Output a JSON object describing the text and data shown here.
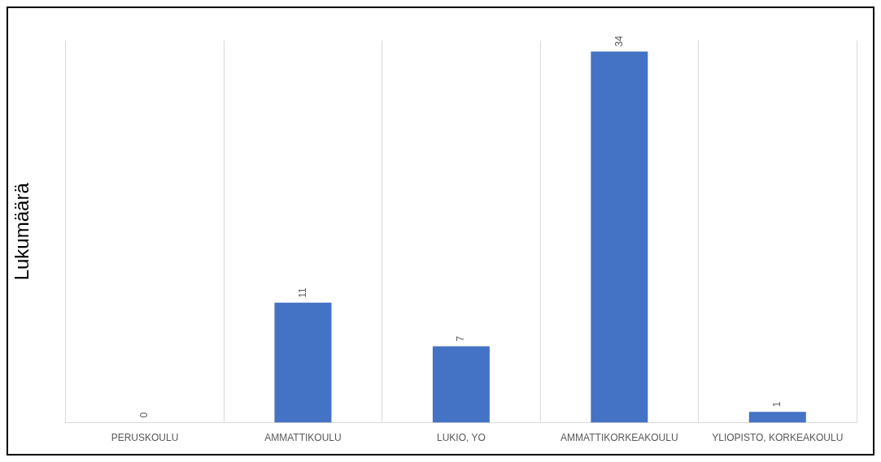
{
  "chart_data": {
    "type": "bar",
    "ylabel": "Lukumäärä",
    "categories": [
      "PERUSKOULU",
      "AMMATTIKOULU",
      "LUKIO, YO",
      "AMMATTIKORKEAKOULU",
      "YLIOPISTO, KORKEAKOULU"
    ],
    "values": [
      0,
      11,
      7,
      34,
      1
    ],
    "color": "#4472c4",
    "data_labels": true,
    "grid": "x",
    "tick_labels": "x",
    "legend": false
  }
}
